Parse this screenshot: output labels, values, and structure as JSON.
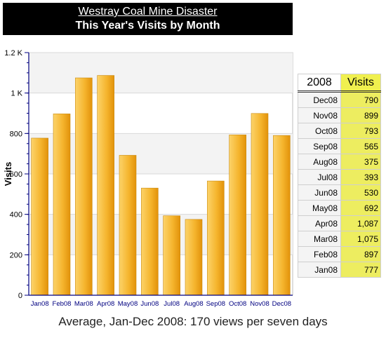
{
  "header": {
    "title": "Westray Coal Mine Disaster",
    "subtitle": "This Year's Visits by Month"
  },
  "colors": {
    "bar_light": "#fcd36a",
    "bar_dark": "#e2920a",
    "plot_bg": "#ffffff",
    "axis": "#000080"
  },
  "chart_data": {
    "type": "bar",
    "categories": [
      "Jan08",
      "Feb08",
      "Mar08",
      "Apr08",
      "May08",
      "Jun08",
      "Jul08",
      "Aug08",
      "Sep08",
      "Oct08",
      "Nov08",
      "Dec08"
    ],
    "values": [
      777,
      897,
      1075,
      1087,
      692,
      530,
      393,
      375,
      565,
      793,
      899,
      790
    ],
    "ylabel": "Visits",
    "xlabel": "",
    "ylim": [
      0,
      1200
    ],
    "yticks": [
      0,
      200,
      400,
      600,
      800,
      1000,
      1200
    ],
    "ytick_labels": [
      "0",
      "200",
      "400",
      "600",
      "800",
      "1 K",
      "1.2 K"
    ],
    "grid": true
  },
  "table": {
    "year_header": "2008",
    "visits_header": "Visits",
    "rows": [
      {
        "month": "Dec08",
        "visits": "790"
      },
      {
        "month": "Nov08",
        "visits": "899"
      },
      {
        "month": "Oct08",
        "visits": "793"
      },
      {
        "month": "Sep08",
        "visits": "565"
      },
      {
        "month": "Aug08",
        "visits": "375"
      },
      {
        "month": "Jul08",
        "visits": "393"
      },
      {
        "month": "Jun08",
        "visits": "530"
      },
      {
        "month": "May08",
        "visits": "692"
      },
      {
        "month": "Apr08",
        "visits": "1,087"
      },
      {
        "month": "Mar08",
        "visits": "1,075"
      },
      {
        "month": "Feb08",
        "visits": "897"
      },
      {
        "month": "Jan08",
        "visits": "777"
      }
    ]
  },
  "footer": {
    "summary": "Average, Jan-Dec 2008:  170  views per seven days"
  }
}
